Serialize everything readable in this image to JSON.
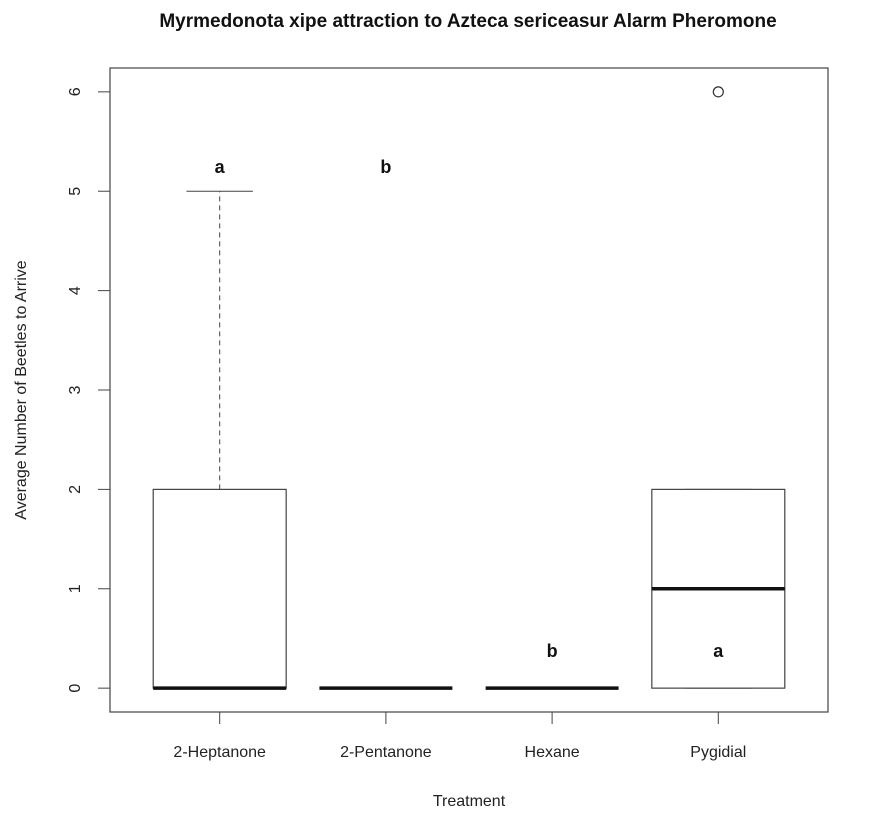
{
  "chart_data": {
    "type": "box",
    "title": "Myrmedonota xipe attraction to Azteca sericeasur Alarm Pheromone",
    "x_label": "Treatment",
    "y_label": "Average Number of Beetles to Arrive",
    "categories": [
      "2-Heptanone",
      "2-Pentanone",
      "Hexane",
      "Pygidial"
    ],
    "boxes": [
      {
        "min": 0,
        "q1": 0,
        "median": 0,
        "q3": 2,
        "max": 5,
        "outliers": []
      },
      {
        "min": 0,
        "q1": 0,
        "median": 0,
        "q3": 0,
        "max": 0,
        "outliers": []
      },
      {
        "min": 0,
        "q1": 0,
        "median": 0,
        "q3": 0,
        "max": 0,
        "outliers": []
      },
      {
        "min": 0,
        "q1": 0,
        "median": 1,
        "q3": 2,
        "max": 2,
        "outliers": [
          6
        ]
      }
    ],
    "annotations": [
      "a",
      "b",
      "b",
      "a"
    ],
    "ylim": [
      -0.24,
      6.24
    ],
    "yticks": [
      0,
      1,
      2,
      3,
      4,
      5,
      6
    ]
  }
}
